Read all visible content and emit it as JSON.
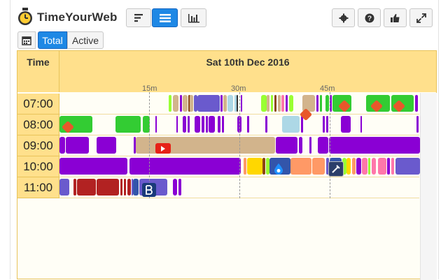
{
  "app": {
    "title": "TimeYourWeb"
  },
  "toolbar": {
    "left_buttons": [
      {
        "icon": "sort-bars-icon",
        "active": false
      },
      {
        "icon": "timeline-icon",
        "active": true
      },
      {
        "icon": "bar-chart-icon",
        "active": false
      }
    ],
    "right_buttons": [
      {
        "icon": "gear-icon"
      },
      {
        "icon": "help-icon"
      },
      {
        "icon": "thumbs-up-icon"
      },
      {
        "icon": "expand-icon"
      }
    ]
  },
  "subbar": {
    "calendar_icon": "calendar-icon",
    "total_label": "Total",
    "active_label": "Active",
    "selected": "Total"
  },
  "timeline": {
    "time_header": "Time",
    "date_header": "Sat 10th Dec 2016",
    "ticks": [
      "15m",
      "30m",
      "45m"
    ],
    "hours": [
      "07:00",
      "08:00",
      "09:00",
      "10:00",
      "11:00"
    ],
    "colors": {
      "purple": "#8a00d4",
      "green": "#33cc33",
      "tan": "#d2b48c",
      "red": "#b22222",
      "slate": "#6a5acd",
      "orange": "#ff9966",
      "yellow": "#ffd700",
      "lightblue": "#add8e6",
      "lime": "#99ff33",
      "pink": "#ff77aa",
      "brown": "#8b4513",
      "navy": "#3355aa",
      "header": "#ffe08c"
    }
  }
}
